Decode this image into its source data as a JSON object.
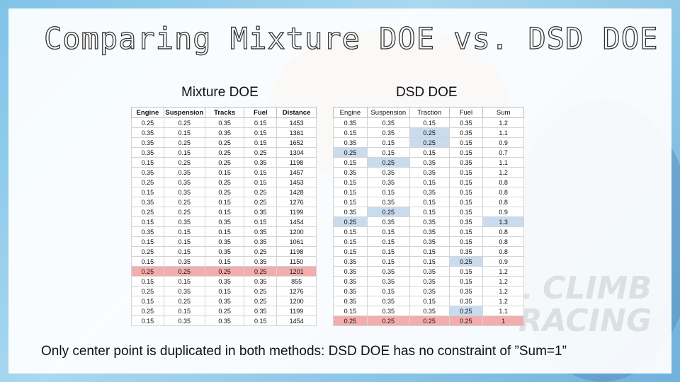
{
  "slide": {
    "title": "Comparing Mixture DOE vs. DSD DOE",
    "mixture_heading": "Mixture DOE",
    "dsd_heading": "DSD DOE",
    "caption": "Only center point is duplicated in both methods: DSD DOE has no constraint of ”Sum=1”"
  },
  "background_watermark": [
    "ILL CLIMB",
    "RACING"
  ],
  "colors": {
    "blue_highlight": "#c9dbee",
    "red_highlight": "#f2aeae"
  },
  "mixture_table": {
    "columns": [
      "Engine",
      "Suspension",
      "Tracks",
      "Fuel",
      "Distance"
    ],
    "rows": [
      [
        "0.25",
        "0.25",
        "0.35",
        "0.15",
        "1453"
      ],
      [
        "0.35",
        "0.15",
        "0.35",
        "0.15",
        "1361"
      ],
      [
        "0.35",
        "0.25",
        "0.25",
        "0.15",
        "1652"
      ],
      [
        "0.35",
        "0.15",
        "0.25",
        "0.25",
        "1304"
      ],
      [
        "0.15",
        "0.25",
        "0.25",
        "0.35",
        "1198"
      ],
      [
        "0.35",
        "0.35",
        "0.15",
        "0.15",
        "1457"
      ],
      [
        "0.25",
        "0.35",
        "0.25",
        "0.15",
        "1453"
      ],
      [
        "0.15",
        "0.35",
        "0.25",
        "0.25",
        "1428"
      ],
      [
        "0.35",
        "0.25",
        "0.15",
        "0.25",
        "1276"
      ],
      [
        "0.25",
        "0.25",
        "0.15",
        "0.35",
        "1199"
      ],
      [
        "0.15",
        "0.35",
        "0.35",
        "0.15",
        "1454"
      ],
      [
        "0.35",
        "0.15",
        "0.15",
        "0.35",
        "1200"
      ],
      [
        "0.15",
        "0.15",
        "0.35",
        "0.35",
        "1061"
      ],
      [
        "0.25",
        "0.15",
        "0.35",
        "0.25",
        "1198"
      ],
      [
        "0.15",
        "0.35",
        "0.15",
        "0.35",
        "1150"
      ],
      [
        "0.25",
        "0.25",
        "0.25",
        "0.25",
        "1201"
      ],
      [
        "0.15",
        "0.15",
        "0.35",
        "0.35",
        "855"
      ],
      [
        "0.25",
        "0.35",
        "0.15",
        "0.25",
        "1276"
      ],
      [
        "0.15",
        "0.25",
        "0.35",
        "0.25",
        "1200"
      ],
      [
        "0.25",
        "0.15",
        "0.25",
        "0.35",
        "1199"
      ],
      [
        "0.15",
        "0.35",
        "0.35",
        "0.15",
        "1454"
      ]
    ],
    "highlight_row": 15
  },
  "dsd_table": {
    "columns": [
      "Engine",
      "Suspension",
      "Traction",
      "Fuel",
      "Sum"
    ],
    "rows": [
      [
        "0.35",
        "0.35",
        "0.15",
        "0.35",
        "1.2"
      ],
      [
        "0.15",
        "0.35",
        "0.25",
        "0.35",
        "1.1"
      ],
      [
        "0.35",
        "0.15",
        "0.25",
        "0.15",
        "0.9"
      ],
      [
        "0.25",
        "0.15",
        "0.15",
        "0.15",
        "0.7"
      ],
      [
        "0.15",
        "0.25",
        "0.35",
        "0.35",
        "1.1"
      ],
      [
        "0.35",
        "0.35",
        "0.35",
        "0.15",
        "1.2"
      ],
      [
        "0.15",
        "0.35",
        "0.15",
        "0.15",
        "0.8"
      ],
      [
        "0.15",
        "0.15",
        "0.35",
        "0.15",
        "0.8"
      ],
      [
        "0.15",
        "0.35",
        "0.15",
        "0.15",
        "0.8"
      ],
      [
        "0.35",
        "0.25",
        "0.15",
        "0.15",
        "0.9"
      ],
      [
        "0.25",
        "0.35",
        "0.35",
        "0.35",
        "1.3"
      ],
      [
        "0.15",
        "0.15",
        "0.35",
        "0.15",
        "0.8"
      ],
      [
        "0.15",
        "0.15",
        "0.35",
        "0.15",
        "0.8"
      ],
      [
        "0.15",
        "0.15",
        "0.15",
        "0.35",
        "0.8"
      ],
      [
        "0.35",
        "0.15",
        "0.15",
        "0.25",
        "0.9"
      ],
      [
        "0.35",
        "0.35",
        "0.35",
        "0.15",
        "1.2"
      ],
      [
        "0.35",
        "0.35",
        "0.35",
        "0.15",
        "1.2"
      ],
      [
        "0.35",
        "0.15",
        "0.35",
        "0.35",
        "1.2"
      ],
      [
        "0.35",
        "0.35",
        "0.15",
        "0.35",
        "1.2"
      ],
      [
        "0.15",
        "0.35",
        "0.35",
        "0.25",
        "1.1"
      ],
      [
        "0.25",
        "0.25",
        "0.25",
        "0.25",
        "1"
      ]
    ],
    "blue_cells": [
      [
        1,
        2
      ],
      [
        2,
        2
      ],
      [
        3,
        0
      ],
      [
        4,
        1
      ],
      [
        9,
        1
      ],
      [
        10,
        0
      ],
      [
        10,
        4
      ],
      [
        14,
        3
      ],
      [
        19,
        3
      ]
    ],
    "highlight_row": 20
  }
}
